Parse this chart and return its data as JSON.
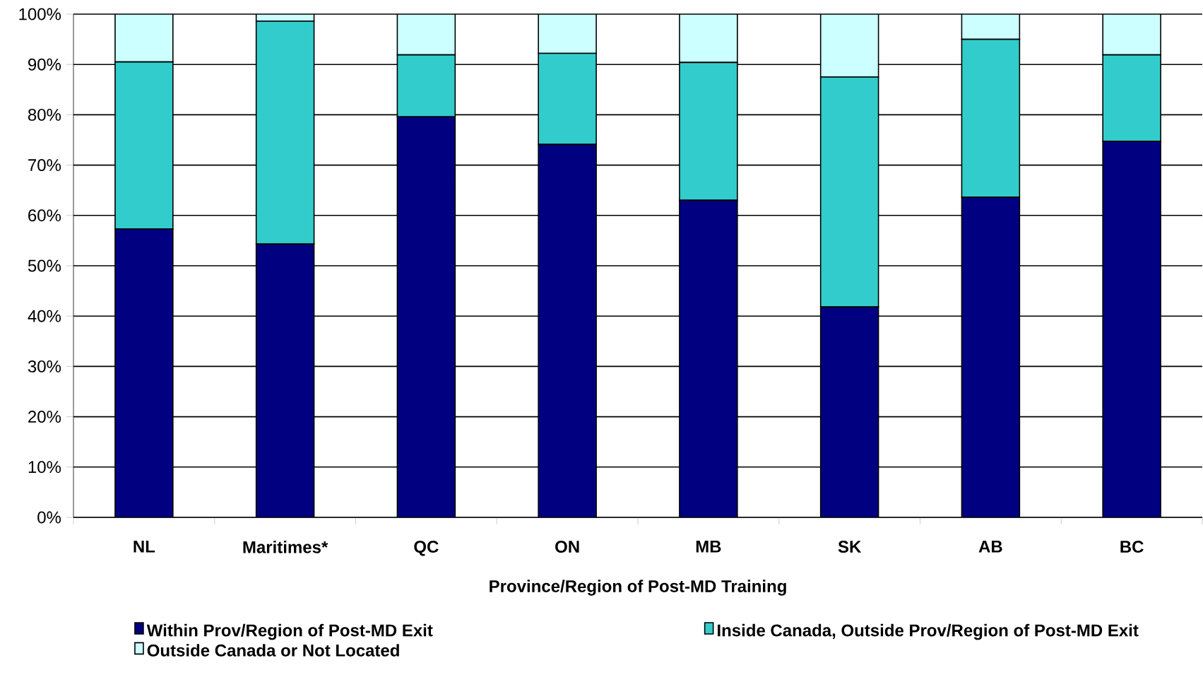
{
  "chart_data": {
    "type": "bar",
    "stacked": true,
    "xlabel": "Province/Region of Post-MD Training",
    "categories": [
      "NL",
      "Maritimes*",
      "QC",
      "ON",
      "MB",
      "SK",
      "AB",
      "BC"
    ],
    "series": [
      {
        "name": "Within Prov/Region of Post-MD Exit",
        "color": "#000080",
        "values": [
          57.3,
          54.3,
          79.6,
          74.1,
          63.0,
          41.8,
          63.6,
          74.7
        ]
      },
      {
        "name": "Inside Canada, Outside Prov/Region of Post-MD Exit",
        "color": "#33cccc",
        "values": [
          33.2,
          44.3,
          12.3,
          18.1,
          27.4,
          45.7,
          31.4,
          17.2
        ]
      },
      {
        "name": "Outside Canada or Not Located",
        "color": "#ccffff",
        "values": [
          9.5,
          1.4,
          8.1,
          7.8,
          9.6,
          12.5,
          5.0,
          8.1
        ]
      }
    ],
    "ylim": [
      0,
      100
    ],
    "yticks": [
      {
        "value": 0,
        "label": "0%"
      },
      {
        "value": 10,
        "label": "10%"
      },
      {
        "value": 20,
        "label": "20%"
      },
      {
        "value": 30,
        "label": "30%"
      },
      {
        "value": 40,
        "label": "40%"
      },
      {
        "value": 50,
        "label": "50%"
      },
      {
        "value": 60,
        "label": "60%"
      },
      {
        "value": 70,
        "label": "70%"
      },
      {
        "value": 80,
        "label": "80%"
      },
      {
        "value": 90,
        "label": "90%"
      },
      {
        "value": 100,
        "label": "100%"
      }
    ],
    "grid": "y",
    "legend": "bottom"
  }
}
